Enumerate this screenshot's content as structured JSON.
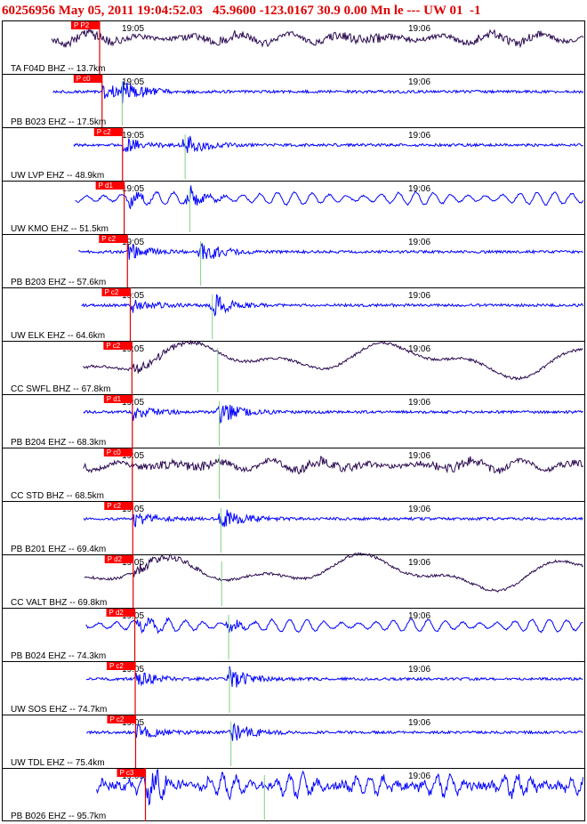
{
  "header": {
    "event_id": "60256956",
    "datetime": "May 05, 2011 19:04:52.03",
    "latitude": "45.9600",
    "longitude": "-123.0167",
    "depth": "30.9",
    "magnitude": "0.00",
    "mag_type": "Mn",
    "event_type": "le",
    "dashes": "---",
    "network": "UW",
    "version": "01",
    "extra": "-1"
  },
  "colors": {
    "header_text": "#e00000",
    "trace_blue": "#0000ff",
    "trace_dark": "#2a0a50",
    "pick_line": "#e00000",
    "pick_box": "#ff0000",
    "s_line": "#80d080",
    "border": "#000000"
  },
  "chart_data": {
    "type": "line",
    "title": "",
    "time_ticks": [
      "19:05",
      "19:06"
    ],
    "stations": [
      {
        "label": "TA F04D BHZ -- 13.7km",
        "pick": "P P2",
        "color": "dark",
        "style": "broad",
        "p_time": 0,
        "s_time": 0
      },
      {
        "label": "PB B023 EHZ -- 17.5km",
        "pick": "P c0",
        "color": "blue",
        "style": "event",
        "p_time": 0.6,
        "s_time": 2.9
      },
      {
        "label": "UW LVP EHZ -- 48.9km",
        "pick": "P c2",
        "color": "blue",
        "style": "event",
        "p_time": 5.6,
        "s_time": 11.0
      },
      {
        "label": "UW KMO EHZ -- 51.5km",
        "pick": "P d1",
        "color": "blue",
        "style": "continuous",
        "p_time": 6.0,
        "s_time": 11.6
      },
      {
        "label": "PB B203 EHZ -- 57.6km",
        "pick": "P c2",
        "color": "blue",
        "style": "event",
        "p_time": 6.8,
        "s_time": 13.0
      },
      {
        "label": "UW ELK EHZ -- 64.6km",
        "pick": "P c2",
        "color": "blue",
        "style": "event",
        "p_time": 7.5,
        "s_time": 14.5
      },
      {
        "label": "CC SWFL BHZ -- 67.8km",
        "pick": "P c2",
        "color": "dark",
        "style": "wander",
        "p_time": 7.9,
        "s_time": 15.2
      },
      {
        "label": "PB B204 EHZ -- 68.3km",
        "pick": "P d1",
        "color": "blue",
        "style": "event",
        "p_time": 8.0,
        "s_time": 15.4
      },
      {
        "label": "CC STD BHZ -- 68.5km",
        "pick": "P c0",
        "color": "dark",
        "style": "broad",
        "p_time": 8.0,
        "s_time": 15.4
      },
      {
        "label": "PB B201 EHZ -- 69.4km",
        "pick": "P c2",
        "color": "blue",
        "style": "event",
        "p_time": 8.1,
        "s_time": 15.6
      },
      {
        "label": "CC VALT BHZ -- 69.8km",
        "pick": "P d2",
        "color": "dark",
        "style": "wander",
        "p_time": 8.2,
        "s_time": 15.7
      },
      {
        "label": "PB B024 EHZ -- 74.3km",
        "pick": "P d2",
        "color": "blue",
        "style": "continuous",
        "p_time": 8.6,
        "s_time": 16.6
      },
      {
        "label": "UW SOS EHZ -- 74.7km",
        "pick": "P c2",
        "color": "blue",
        "style": "event",
        "p_time": 8.7,
        "s_time": 16.7
      },
      {
        "label": "UW TDL EHZ -- 75.4km",
        "pick": "P c2",
        "color": "blue",
        "style": "event",
        "p_time": 8.8,
        "s_time": 16.9
      },
      {
        "label": "PB B026 EHZ -- 95.7km",
        "pick": "P c3",
        "color": "blue",
        "style": "noisy",
        "p_time": 11.2,
        "s_time": 21.2
      }
    ]
  }
}
